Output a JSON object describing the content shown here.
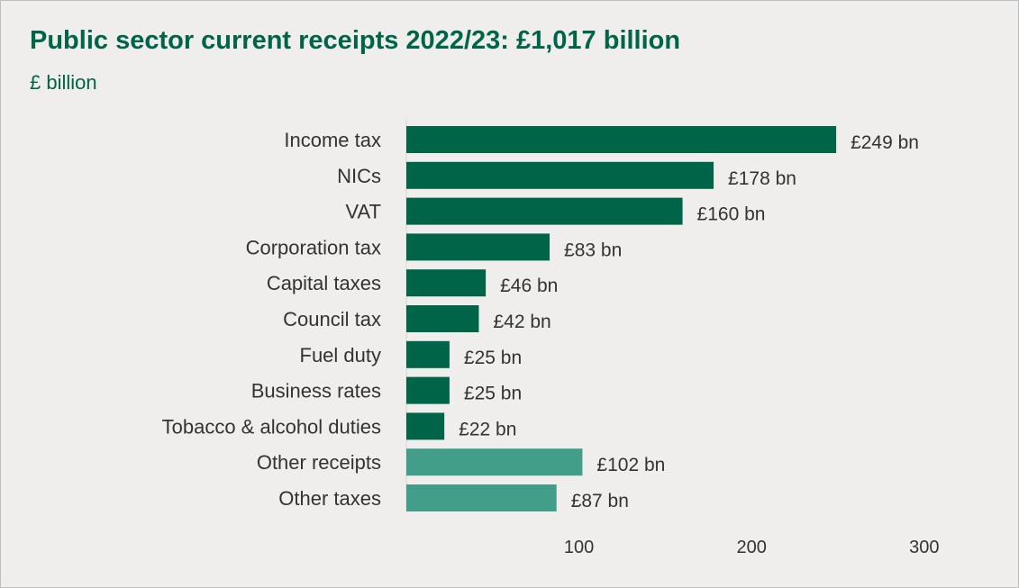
{
  "title": "Public sector current receipts 2022/23: £1,017 billion",
  "subtitle": "£ billion",
  "colors": {
    "primary": "#006548",
    "secondary": "#429e89",
    "background": "#efeeec",
    "text": "#333333"
  },
  "chart_data": {
    "type": "bar",
    "orientation": "horizontal",
    "title": "Public sector current receipts 2022/23: £1,017 billion",
    "unit": "£ billion",
    "xlim": [
      0,
      300
    ],
    "xticks": [
      100,
      200,
      300
    ],
    "grid": false,
    "legend": "none",
    "categories": [
      "Income tax",
      "NICs",
      "VAT",
      "Corporation tax",
      "Capital taxes",
      "Council tax",
      "Fuel duty",
      "Business rates",
      "Tobacco & alcohol duties",
      "Other receipts",
      "Other taxes"
    ],
    "values": [
      249,
      178,
      160,
      83,
      46,
      42,
      25,
      25,
      22,
      102,
      87
    ],
    "data_labels": [
      "£249 bn",
      "£178 bn",
      "£160 bn",
      "£83 bn",
      "£46 bn",
      "£42 bn",
      "£25 bn",
      "£25 bn",
      "£22 bn",
      "£102 bn",
      "£87 bn"
    ],
    "bar_colors": [
      "#006548",
      "#006548",
      "#006548",
      "#006548",
      "#006548",
      "#006548",
      "#006548",
      "#006548",
      "#006548",
      "#429e89",
      "#429e89"
    ]
  }
}
